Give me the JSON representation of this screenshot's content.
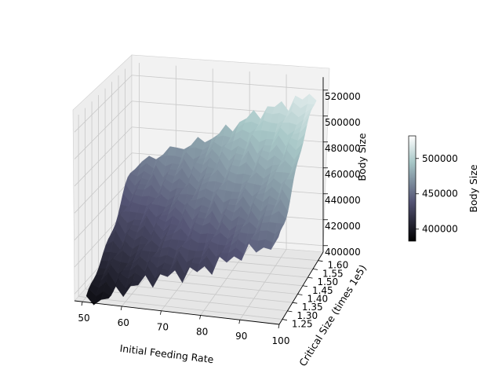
{
  "chart_data": {
    "type": "surface",
    "xlabel": "Initial Feeding Rate",
    "ylabel": "Critical Size (times 1e5)",
    "zlabel": "Body Size",
    "x_ticks": [
      "50",
      "60",
      "70",
      "80",
      "90",
      "100"
    ],
    "y_ticks": [
      "1.25",
      "1.30",
      "1.35",
      "1.40",
      "1.45",
      "1.50",
      "1.55",
      "1.60"
    ],
    "z_ticks": [
      "400000",
      "420000",
      "440000",
      "460000",
      "480000",
      "500000",
      "520000"
    ],
    "xlim": [
      48,
      100
    ],
    "ylim": [
      1.22,
      1.65
    ],
    "zlim": [
      395000,
      530000
    ],
    "colormap": "bone",
    "colorbar": {
      "label": "Body Size",
      "ticks": [
        "400000",
        "450000",
        "500000"
      ],
      "range": [
        383000,
        532000
      ]
    },
    "surface_description": "Body size increases roughly linearly with both feeding rate and critical size",
    "corner_values": {
      "x_min_y_min": 385000,
      "x_max_y_min": 445000,
      "x_min_y_max": 455000,
      "x_max_y_max": 530000
    }
  }
}
